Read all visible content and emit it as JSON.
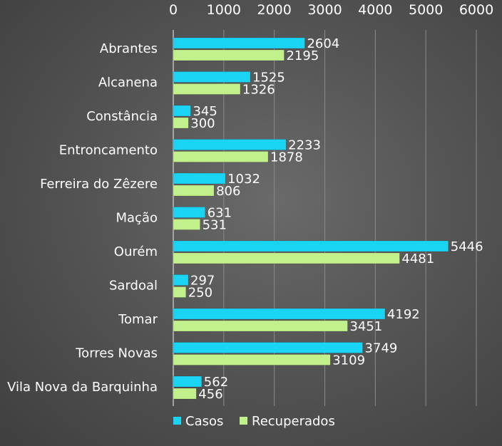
{
  "chart_data": {
    "type": "bar",
    "orientation": "horizontal",
    "categories": [
      "Abrantes",
      "Alcanena",
      "Constância",
      "Entroncamento",
      "Ferreira do Zêzere",
      "Mação",
      "Ourém",
      "Sardoal",
      "Tomar",
      "Torres Novas",
      "Vila Nova da Barquinha"
    ],
    "series": [
      {
        "name": "Casos",
        "color": "#1ad4f4",
        "values": [
          2604,
          1525,
          345,
          2233,
          1032,
          631,
          5446,
          297,
          4192,
          3749,
          562
        ]
      },
      {
        "name": "Recuperados",
        "color": "#c2f08a",
        "values": [
          2195,
          1326,
          300,
          1878,
          806,
          531,
          4481,
          250,
          3451,
          3109,
          456
        ]
      }
    ],
    "xlim": [
      0,
      6000
    ],
    "xticks": [
      0,
      1000,
      2000,
      3000,
      4000,
      5000,
      6000
    ],
    "axis_position": "top",
    "grid": true,
    "legend_position": "bottom-left",
    "title": "",
    "xlabel": "",
    "ylabel": ""
  }
}
